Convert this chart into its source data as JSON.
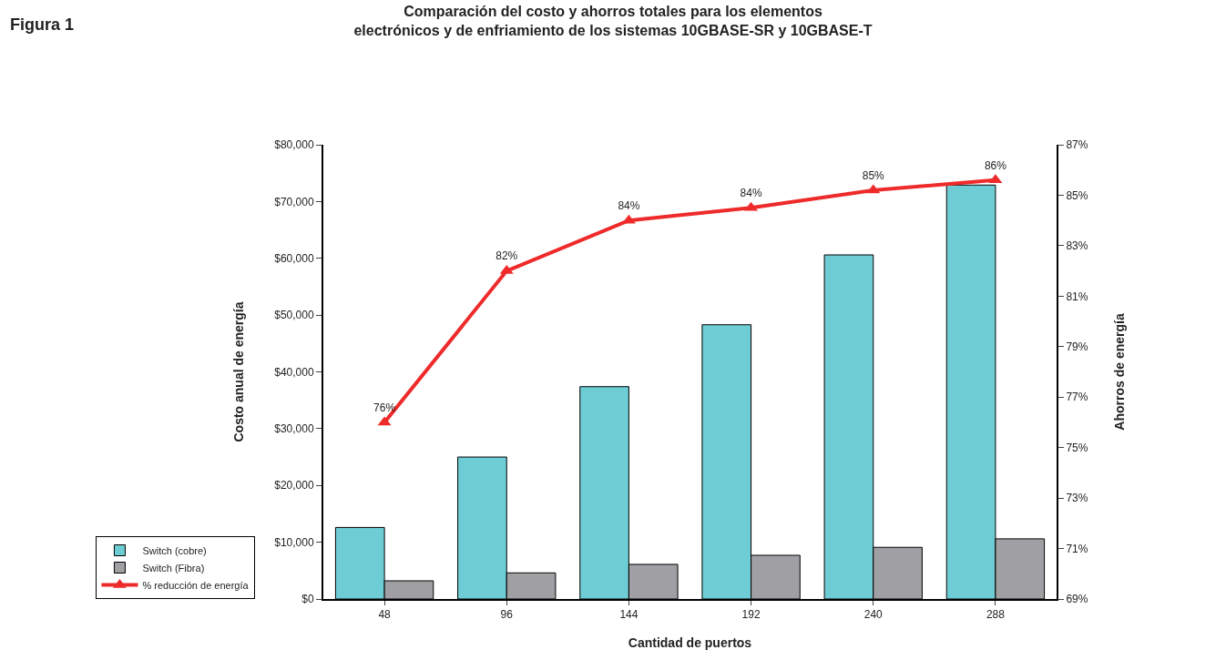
{
  "chart_data": {
    "type": "bar",
    "title": "Comparación del costo y ahorros totales para los elementos\nelectrónicos y de enfriamiento de los sistemas 10GBASE-SR y 10GBASE-T",
    "xlabel": "Cantidad de puertos",
    "ylabel": "Costo anual de energía",
    "y2label": "Ahorros de energía",
    "annotations": [
      "Figura 1"
    ],
    "categories": [
      "48",
      "96",
      "144",
      "192",
      "240",
      "288"
    ],
    "series": [
      {
        "name": "Switch (cobre)",
        "color": "#6ecdd4",
        "values": [
          12600,
          25000,
          37400,
          48300,
          60600,
          72900
        ]
      },
      {
        "name": "Switch (Fibra)",
        "color": "#a0a0a4",
        "values": [
          3200,
          4600,
          6100,
          7700,
          9100,
          10600
        ]
      },
      {
        "name": "% reducción de energía",
        "type": "line",
        "axis": "y2",
        "color": "#ee2a2a",
        "marker": "triangle",
        "line_style": "solid",
        "values": [
          76,
          82,
          84,
          84.5,
          85.2,
          85.6
        ],
        "value_labels": [
          "76%",
          "82%",
          "84%",
          "84%",
          "85%",
          "86%"
        ]
      }
    ],
    "ylim": [
      0,
      80000
    ],
    "yticks": [
      {
        "value": 0,
        "label": "$0"
      },
      {
        "value": 10000,
        "label": "$10,000"
      },
      {
        "value": 20000,
        "label": "$20,000"
      },
      {
        "value": 30000,
        "label": "$30,000"
      },
      {
        "value": 40000,
        "label": "$40,000"
      },
      {
        "value": 50000,
        "label": "$50,000"
      },
      {
        "value": 60000,
        "label": "$60,000"
      },
      {
        "value": 70000,
        "label": "$70,000"
      },
      {
        "value": 80000,
        "label": "$80,000"
      }
    ],
    "y2lim": [
      69,
      87
    ],
    "y2ticks": [
      {
        "value": 69,
        "label": "69%"
      },
      {
        "value": 71,
        "label": "71%"
      },
      {
        "value": 73,
        "label": "73%"
      },
      {
        "value": 75,
        "label": "75%"
      },
      {
        "value": 77,
        "label": "77%"
      },
      {
        "value": 79,
        "label": "79%"
      },
      {
        "value": 81,
        "label": "81%"
      },
      {
        "value": 83,
        "label": "83%"
      },
      {
        "value": 85,
        "label": "85%"
      },
      {
        "value": 87,
        "label": "87%"
      }
    ],
    "grid": false,
    "legend": "bottom left"
  }
}
